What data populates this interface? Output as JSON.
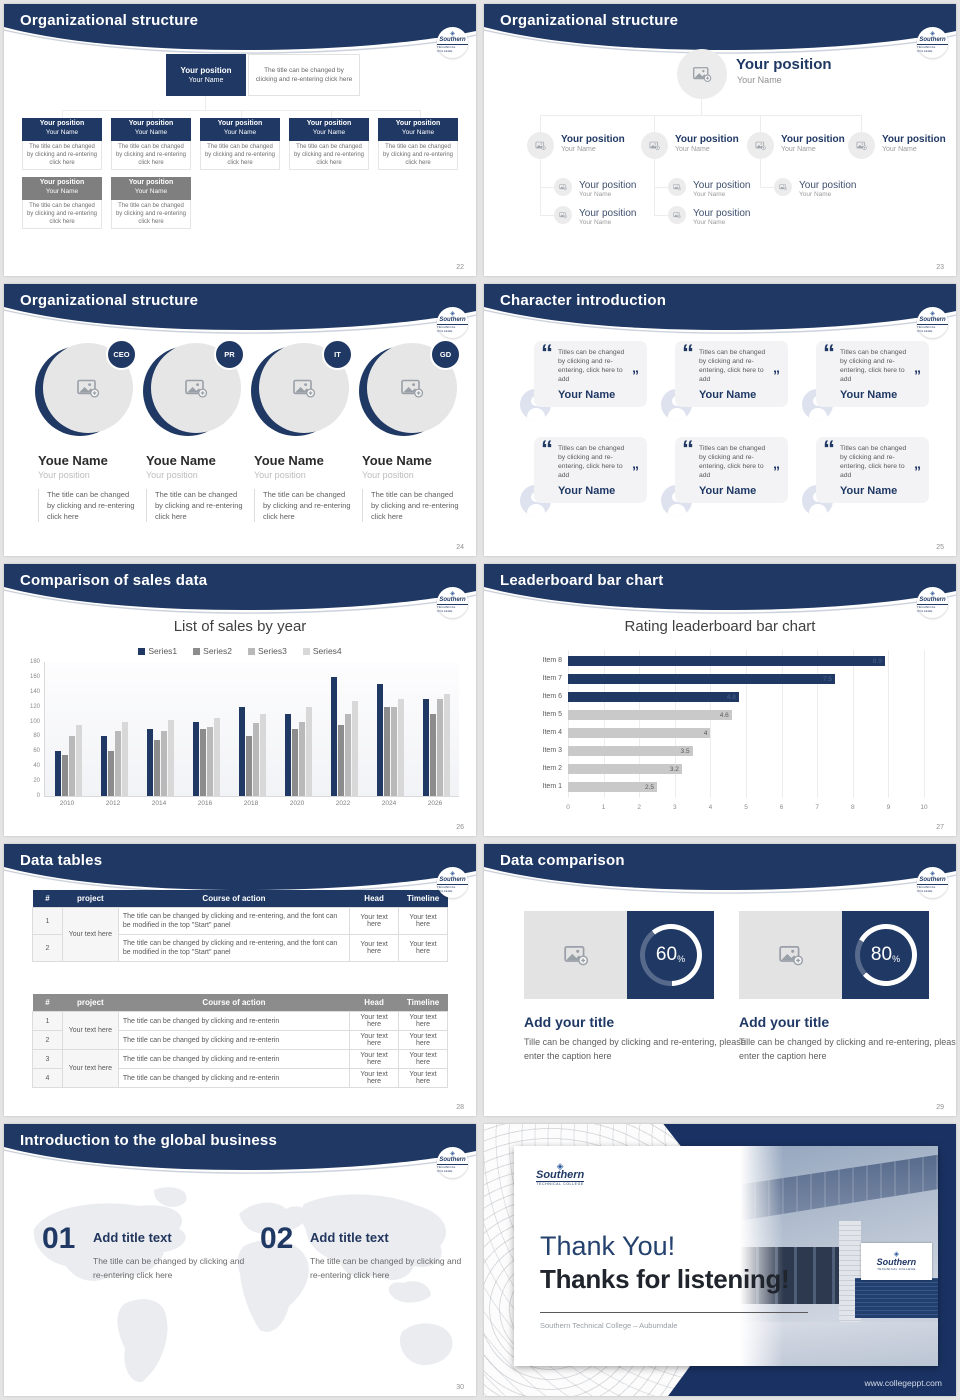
{
  "colors": {
    "navy": "#1f3864",
    "gray_header": "#7f7f7f",
    "canvas_bg": "#e4e4e4",
    "body_text": "#595959"
  },
  "logo": {
    "name": "Southern",
    "sub": "TECHNICAL COLLEGE",
    "mark": "logo-diamond"
  },
  "slides": [
    {
      "title": "Organizational structure",
      "page": "22",
      "root": {
        "position": "Your position",
        "name": "Your Name"
      },
      "root_desc": "The title can be changed by clicking and re-entering click here",
      "row1": [
        {
          "position": "Your position",
          "name": "Your Name",
          "body": "The title can be changed by clicking and re-entering click here"
        },
        {
          "position": "Your position",
          "name": "Your Name",
          "body": "The title can be changed by clicking and re-entering click here"
        },
        {
          "position": "Your position",
          "name": "Your Name",
          "body": "The title can be changed by clicking and re-entering click here"
        },
        {
          "position": "Your position",
          "name": "Your Name",
          "body": "The title can be changed by clicking and re-entering click here"
        },
        {
          "position": "Your position",
          "name": "Your Name",
          "body": "The title can be changed by clicking and re-entering click here"
        }
      ],
      "row2": [
        {
          "position": "Your position",
          "name": "Your Name",
          "body": "The title can be changed by clicking and re-entering click here"
        },
        {
          "position": "Your position",
          "name": "Your Name",
          "body": "The title can be changed by clicking and re-entering click here"
        }
      ]
    },
    {
      "title": "Organizational structure",
      "page": "23",
      "root": {
        "position": "Your position",
        "name": "Your Name"
      },
      "level2": [
        {
          "position": "Your position",
          "name": "Your Name"
        },
        {
          "position": "Your position",
          "name": "Your Name"
        },
        {
          "position": "Your position",
          "name": "Your Name"
        },
        {
          "position": "Your position",
          "name": "Your Name"
        }
      ],
      "level3": [
        {
          "position": "Your position",
          "name": "Your Name"
        },
        {
          "position": "Your position",
          "name": "Your Name"
        },
        {
          "position": "Your position",
          "name": "Your Name"
        }
      ],
      "level4": [
        {
          "position": "Your position",
          "name": "Your Name"
        },
        {
          "position": "Your position",
          "name": "Your Name"
        }
      ]
    },
    {
      "title": "Organizational structure",
      "page": "24",
      "members": [
        {
          "badge": "CEO",
          "name": "Youe Name",
          "position": "Your position",
          "desc": "The title can be changed by clicking and re-entering click here"
        },
        {
          "badge": "PR",
          "name": "Youe Name",
          "position": "Your position",
          "desc": "The title can be changed by clicking and re-entering click here"
        },
        {
          "badge": "IT",
          "name": "Youe Name",
          "position": "Your position",
          "desc": "The title can be changed by clicking and re-entering click here"
        },
        {
          "badge": "GD",
          "name": "Youe Name",
          "position": "Your position",
          "desc": "The title can be changed by clicking and re-entering click here"
        }
      ]
    },
    {
      "title": "Character introduction",
      "page": "25",
      "cards": [
        {
          "quote": "Titles can be changed by clicking and re-entering, click here to add",
          "name": "Your Name"
        },
        {
          "quote": "Titles can be changed by clicking and re-entering, click here to add",
          "name": "Your Name"
        },
        {
          "quote": "Titles can be changed by clicking and re-entering, click here to add",
          "name": "Your Name"
        },
        {
          "quote": "Titles can be changed by clicking and re-entering, click here to add",
          "name": "Your Name"
        },
        {
          "quote": "Titles can be changed by clicking and re-entering, click here to add",
          "name": "Your Name"
        },
        {
          "quote": "Titles can be changed by clicking and re-entering, click here to add",
          "name": "Your Name"
        }
      ]
    },
    {
      "title": "Comparison of sales data",
      "page": "26"
    },
    {
      "title": "Leaderboard bar chart",
      "page": "27"
    },
    {
      "title": "Data tables",
      "page": "28",
      "table1": {
        "headers": [
          "#",
          "project",
          "Course of action",
          "Head",
          "Timeline"
        ],
        "project": "Your text here",
        "rows": [
          {
            "num": "1",
            "course": "The title can be changed by clicking and re-entering, and the font can be modified in the top \"Start\" panel",
            "head": "Your text here",
            "timeline": "Your text here"
          },
          {
            "num": "2",
            "course": "The title can be changed by clicking and re-entering, and the font can be modified in the top \"Start\" panel",
            "head": "Your text here",
            "timeline": "Your text here"
          }
        ]
      },
      "table2": {
        "headers": [
          "#",
          "project",
          "Course of action",
          "Head",
          "Timeline"
        ],
        "projects": [
          "Your text here",
          "Your text here"
        ],
        "rows": [
          {
            "num": "1",
            "course": "The title can be changed by clicking and re-enterin",
            "head": "Your text here",
            "timeline": "Your text here"
          },
          {
            "num": "2",
            "course": "The title can be changed by clicking and re-enterin",
            "head": "Your text here",
            "timeline": "Your text here"
          },
          {
            "num": "3",
            "course": "The title can be changed by clicking and re-enterin",
            "head": "Your text here",
            "timeline": "Your text here"
          },
          {
            "num": "4",
            "course": "The title can be changed by clicking and re-enterin",
            "head": "Your text here",
            "timeline": "Your text here"
          }
        ]
      }
    },
    {
      "title": "Data comparison",
      "page": "29",
      "items": [
        {
          "percent": "60",
          "suffix": "%",
          "title": "Add your title",
          "caption": "Tille can be changed by clicking and re-entering, please enter the caption here"
        },
        {
          "percent": "80",
          "suffix": "%",
          "title": "Add your title",
          "caption": "Tille can be changed by clicking and re-entering, please enter the caption here"
        }
      ]
    },
    {
      "title": "Introduction to the global business",
      "page": "30",
      "items": [
        {
          "num": "01",
          "title": "Add title text",
          "desc": "The title can be changed by clicking and re-entering click here"
        },
        {
          "num": "02",
          "title": "Add title text",
          "desc": "The title can be changed by clicking and re-entering click here"
        }
      ]
    },
    {
      "title_line1": "Thank You!",
      "title_line2": "Thanks for listening!",
      "subtitle": "Southern Technical College – Auburndale",
      "url": "www.collegeppt.com",
      "sign": "Southern",
      "sign_sub": "TECHNICAL COLLEGE"
    }
  ],
  "chart_data": [
    {
      "type": "bar",
      "title": "List of sales by year",
      "categories": [
        "2010",
        "2012",
        "2014",
        "2016",
        "2018",
        "2020",
        "2022",
        "2024",
        "2026"
      ],
      "series": [
        {
          "name": "Series1",
          "values": [
            60,
            80,
            90,
            100,
            120,
            110,
            160,
            150,
            130
          ]
        },
        {
          "name": "Series2",
          "values": [
            55,
            60,
            75,
            90,
            80,
            90,
            96,
            120,
            110
          ]
        },
        {
          "name": "Series3",
          "values": [
            80,
            87,
            88,
            93,
            98,
            100,
            110,
            120,
            130
          ]
        },
        {
          "name": "Series4",
          "values": [
            95,
            99,
            102,
            105,
            110,
            120,
            128,
            130,
            137
          ]
        }
      ],
      "colors": [
        "#1f3864",
        "#8c8c8c",
        "#b9b9b9",
        "#d8d8d8"
      ],
      "ylim": [
        0,
        180
      ],
      "yticks": [
        0,
        20,
        40,
        60,
        80,
        100,
        120,
        140,
        160,
        180
      ],
      "legend_position": "top",
      "grid": false
    },
    {
      "type": "hbar",
      "title": "Rating leaderboard bar chart",
      "categories": [
        "Item 8",
        "Item 7",
        "Item 6",
        "Item 5",
        "Item 4",
        "Item 3",
        "Item 2",
        "Item 1"
      ],
      "values": [
        8.9,
        7.5,
        4.8,
        4.6,
        4,
        3.5,
        3.2,
        2.5
      ],
      "labels": [
        "8.9",
        "7.5",
        "4.8",
        "4.6",
        "4",
        "3.5",
        "3.2",
        "2.5"
      ],
      "bar_colors": [
        "#1f3864",
        "#1f3864",
        "#1f3864",
        "#c9c9c9",
        "#c9c9c9",
        "#c9c9c9",
        "#c9c9c9",
        "#c9c9c9"
      ],
      "xlim": [
        0,
        10
      ],
      "xticks": [
        0,
        1,
        2,
        3,
        4,
        5,
        6,
        7,
        8,
        9,
        10
      ],
      "grid": true
    }
  ]
}
